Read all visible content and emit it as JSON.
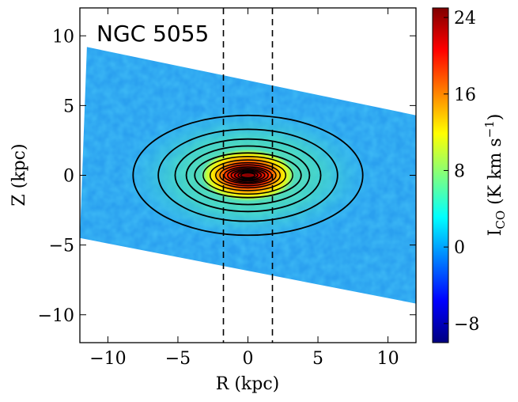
{
  "chart_data": {
    "type": "heatmap",
    "title": "NGC 5055",
    "xlabel": "R (kpc)",
    "ylabel": "Z (kpc)",
    "xlim": [
      -12,
      12
    ],
    "ylim": [
      -12,
      12
    ],
    "x_ticks": [
      -10,
      -5,
      0,
      5,
      10
    ],
    "x_tick_labels": [
      "−10",
      "−5",
      "0",
      "5",
      "10"
    ],
    "y_ticks": [
      10,
      5,
      0,
      -5,
      -10
    ],
    "y_tick_labels": [
      "10",
      "5",
      "0",
      "−5",
      "−10"
    ],
    "vertical_dashed_lines_R": [
      -1.75,
      1.75
    ],
    "colorbar": {
      "label": "I_CO (K km s⁻¹)",
      "label_main": "I",
      "label_sub": "CO",
      "label_units": " (K km s",
      "label_sup": "−1",
      "label_close": ")",
      "range": [
        -10,
        25
      ],
      "ticks": [
        24,
        16,
        8,
        0,
        -8
      ],
      "tick_labels": [
        "24",
        "16",
        "8",
        "0",
        "−8"
      ],
      "colormap": "jet"
    },
    "data_footprint": {
      "description": "tilted strip of observed emission",
      "corners_kpc": [
        [
          -11.5,
          9.2
        ],
        [
          12,
          4.3
        ],
        [
          12,
          -9.2
        ],
        [
          -12,
          -4.5
        ]
      ]
    },
    "contours": {
      "center": [
        0,
        0
      ],
      "semi_axes_kpc": [
        [
          8.2,
          4.3
        ],
        [
          6.4,
          3.3
        ],
        [
          5.2,
          2.6
        ],
        [
          4.4,
          2.1
        ],
        [
          3.8,
          1.6
        ],
        [
          3.2,
          1.35
        ],
        [
          2.7,
          1.1
        ],
        [
          2.3,
          0.9
        ],
        [
          2.0,
          0.75
        ],
        [
          1.7,
          0.6
        ],
        [
          1.45,
          0.5
        ],
        [
          1.2,
          0.4
        ],
        [
          0.95,
          0.32
        ],
        [
          0.7,
          0.24
        ],
        [
          0.5,
          0.18
        ]
      ]
    }
  }
}
